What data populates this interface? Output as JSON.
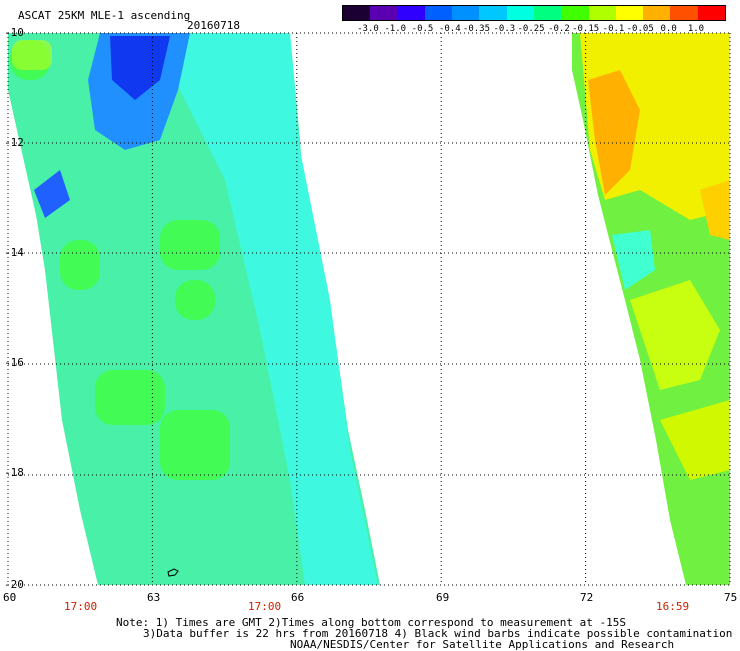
{
  "header": {
    "title": "ASCAT 25KM MLE-1 ascending",
    "date": "20160718"
  },
  "colorbar": {
    "tick_labels": [
      "-3.0",
      "-1.0",
      "-0.5",
      "-0.4",
      "-0.35",
      "-0.3",
      "-0.25",
      "-0.2",
      "-0.15",
      "-0.1",
      "-0.05",
      "0.0",
      "1.0"
    ],
    "colors": [
      "#1a0033",
      "#5a00b0",
      "#3000ff",
      "#0060ff",
      "#0090ff",
      "#00c8ff",
      "#00ffe0",
      "#00ff80",
      "#40ff00",
      "#b0ff00",
      "#ffff00",
      "#ffb000",
      "#ff5000",
      "#ff0000"
    ]
  },
  "map": {
    "lat_labels": [
      "-10",
      "-12",
      "-14",
      "-16",
      "-18",
      "-20"
    ],
    "lon_labels": [
      "60",
      "63",
      "66",
      "69",
      "72",
      "75"
    ],
    "time_labels": [
      "17:00",
      "17:00",
      "16:59"
    ],
    "lat_range": [
      -20,
      -10
    ],
    "lon_range": [
      60,
      75
    ]
  },
  "footer": {
    "note1": "Note: 1) Times are GMT 2)Times along bottom correspond to measurement at -15S",
    "note2": "3)Data buffer is 22 hrs from 20160718 4) Black wind barbs indicate possible contamination",
    "credit": "NOAA/NESDIS/Center for Satellite Applications and Research"
  },
  "colors": {
    "time_label": "#cc2200",
    "swath_main": "#40f0a0",
    "swath_right": "#d0f000"
  }
}
